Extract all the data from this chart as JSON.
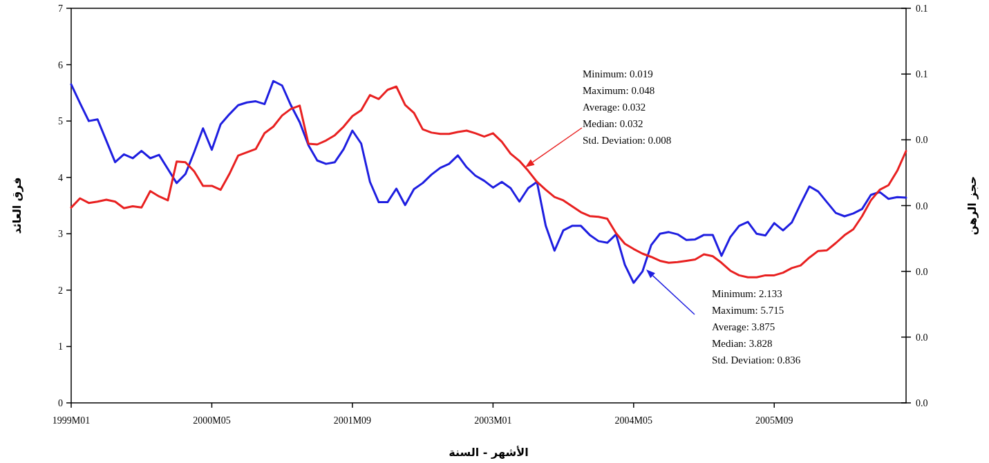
{
  "chart_data": {
    "type": "line",
    "xlabel": "الأشهر - السنة",
    "ylabel": "فرق العائد",
    "y2label": "حجز الرهن",
    "categories": [
      "1999M01",
      null,
      null,
      null,
      null,
      null,
      null,
      null,
      null,
      null,
      null,
      null,
      null,
      null,
      null,
      null,
      "2000M05",
      null,
      null,
      null,
      null,
      null,
      null,
      null,
      null,
      null,
      null,
      null,
      null,
      null,
      null,
      null,
      "2001M09",
      null,
      null,
      null,
      null,
      null,
      null,
      null,
      null,
      null,
      null,
      null,
      null,
      null,
      null,
      null,
      "2003M01",
      null,
      null,
      null,
      null,
      null,
      null,
      null,
      null,
      null,
      null,
      null,
      null,
      null,
      null,
      null,
      "2004M05",
      null,
      null,
      null,
      null,
      null,
      null,
      null,
      null,
      null,
      null,
      null,
      null,
      null,
      null,
      null,
      "2005M09",
      null,
      null,
      null,
      null,
      null,
      null,
      null,
      null,
      null,
      null,
      null,
      null,
      null,
      null,
      null
    ],
    "series": [
      {
        "color": "#1e1ee0",
        "values": [
          5.65,
          5.32,
          5.0,
          5.03,
          4.65,
          4.27,
          4.41,
          4.34,
          4.47,
          4.34,
          4.4,
          4.15,
          3.9,
          4.06,
          4.45,
          4.87,
          4.49,
          4.94,
          5.12,
          5.28,
          5.33,
          5.35,
          5.3,
          5.71,
          5.63,
          5.28,
          4.98,
          4.57,
          4.3,
          4.24,
          4.27,
          4.5,
          4.83,
          4.6,
          3.92,
          3.56,
          3.56,
          3.8,
          3.51,
          3.79,
          3.9,
          4.05,
          4.17,
          4.24,
          4.39,
          4.18,
          4.03,
          3.94,
          3.82,
          3.92,
          3.81,
          3.57,
          3.81,
          3.92,
          3.14,
          2.7,
          3.06,
          3.14,
          3.14,
          2.98,
          2.87,
          2.84,
          2.99,
          2.45,
          2.13,
          2.33,
          2.8,
          3.0,
          3.03,
          2.99,
          2.89,
          2.9,
          2.98,
          2.98,
          2.61,
          2.94,
          3.14,
          3.21,
          3.0,
          2.97,
          3.19,
          3.06,
          3.2,
          3.53,
          3.84,
          3.75,
          3.56,
          3.37,
          3.31,
          3.36,
          3.44,
          3.69,
          3.74,
          3.62,
          3.65,
          3.64
        ]
      },
      {
        "color": "#e82020",
        "axis": "y2",
        "values": [
          0.0297,
          0.0311,
          0.0304,
          0.0306,
          0.0309,
          0.0306,
          0.0296,
          0.0299,
          0.0297,
          0.0322,
          0.0314,
          0.0308,
          0.0367,
          0.0366,
          0.0352,
          0.033,
          0.033,
          0.0324,
          0.0348,
          0.0376,
          0.0381,
          0.0386,
          0.041,
          0.042,
          0.0437,
          0.0447,
          0.0452,
          0.0394,
          0.0393,
          0.0399,
          0.0407,
          0.042,
          0.0436,
          0.0445,
          0.0468,
          0.0462,
          0.0476,
          0.0481,
          0.0453,
          0.0441,
          0.0416,
          0.0411,
          0.0409,
          0.0409,
          0.0412,
          0.0414,
          0.041,
          0.0405,
          0.041,
          0.0397,
          0.0379,
          0.0368,
          0.0353,
          0.0336,
          0.0324,
          0.0313,
          0.0308,
          0.0299,
          0.029,
          0.0284,
          0.0283,
          0.028,
          0.0258,
          0.0242,
          0.0234,
          0.0227,
          0.0222,
          0.0216,
          0.0213,
          0.0214,
          0.0216,
          0.0218,
          0.0226,
          0.0223,
          0.0213,
          0.0201,
          0.0194,
          0.0191,
          0.0191,
          0.0194,
          0.0194,
          0.0198,
          0.0205,
          0.0209,
          0.0221,
          0.0231,
          0.0232,
          0.0243,
          0.0255,
          0.0264,
          0.0284,
          0.0308,
          0.0324,
          0.0331,
          0.0353,
          0.0383
        ]
      }
    ],
    "ylim": [
      0,
      7
    ],
    "yticks": [
      0,
      1,
      2,
      3,
      4,
      5,
      6,
      7
    ],
    "y2lim": [
      0,
      0.06
    ],
    "y2ticks": [
      {
        "value": 0,
        "label": "0.0"
      },
      {
        "value": 0.01,
        "label": "0.0"
      },
      {
        "value": 0.02,
        "label": "0.0"
      },
      {
        "value": 0.03,
        "label": "0.0"
      },
      {
        "value": 0.04,
        "label": "0.0"
      },
      {
        "value": 0.05,
        "label": "0.1"
      },
      {
        "value": 0.06,
        "label": "0.1"
      }
    ],
    "annotations": [
      "Minimum: 0.019",
      "Maximum: 0.048",
      "Average: 0.032",
      "Median: 0.032",
      "Std. Deviation: 0.008",
      "Minimum: 2.133",
      "Maximum: 5.715",
      "Average: 3.875",
      "Median: 3.828",
      "Std. Deviation: 0.836"
    ]
  }
}
